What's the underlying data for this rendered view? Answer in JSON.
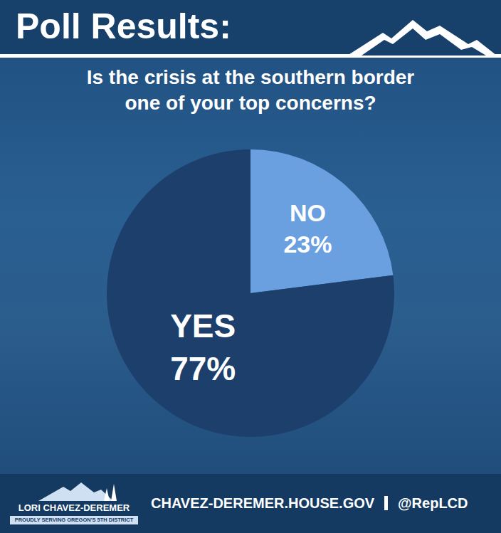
{
  "header": {
    "title": "Poll Results:"
  },
  "chart_data": {
    "type": "pie",
    "title": "Is the crisis at the southern border one of your top concerns?",
    "categories": [
      "NO",
      "YES"
    ],
    "values": [
      23,
      77
    ],
    "value_labels": [
      "23%",
      "77%"
    ],
    "colors": [
      "#6a9fe0",
      "#1d3f6b"
    ],
    "data_labels": true
  },
  "footer": {
    "name": "LORI CHAVEZ-DEREMER",
    "tagline": "PROUDLY SERVING OREGON'S 5TH DISTRICT",
    "website": "CHAVEZ-DEREMER.HOUSE.GOV",
    "handle": "@RepLCD"
  }
}
